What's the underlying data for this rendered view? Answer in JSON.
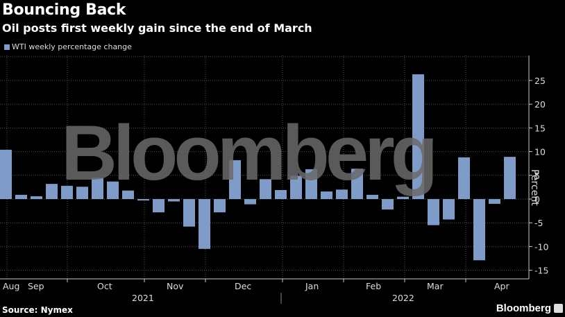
{
  "header": {
    "title": "Bouncing Back",
    "subtitle": "Oil posts first weekly gain since the end of March"
  },
  "legend": {
    "label": "WTI weekly percentage change",
    "color": "#7f9cc8"
  },
  "footer": {
    "source": "Source: Nymex",
    "brand": "Bloomberg"
  },
  "watermark": "Bloomberg",
  "colors": {
    "bar": "#7f9cc8",
    "background": "#000000",
    "grid": "#555555",
    "axis": "#cccccc"
  },
  "chart_data": {
    "type": "bar",
    "title": "Bouncing Back",
    "subtitle": "Oil posts first weekly gain since the end of March",
    "xlabel": "",
    "ylabel": "Percent",
    "ylim": [
      -17,
      30
    ],
    "yticks": [
      25,
      20,
      15,
      10,
      5,
      0,
      -5,
      -10,
      -15
    ],
    "xtick_labels": [
      "Aug",
      "Sep",
      "Oct",
      "Nov",
      "Dec",
      "Jan",
      "Feb",
      "Mar",
      "Apr"
    ],
    "year_labels": [
      "2021",
      "2022"
    ],
    "legend": [
      "WTI weekly percentage change"
    ],
    "grid": true,
    "series": [
      {
        "name": "WTI weekly percentage change",
        "values": [
          10.4,
          0.9,
          0.6,
          3.2,
          2.8,
          2.6,
          4.5,
          3.7,
          1.8,
          -0.3,
          -2.8,
          -0.5,
          -5.8,
          -10.5,
          -2.8,
          8.2,
          -1.1,
          4.2,
          1.9,
          4.9,
          6.3,
          1.6,
          2.0,
          6.4,
          0.9,
          -2.2,
          0.5,
          26.3,
          -5.5,
          -4.3,
          8.8,
          -12.9,
          -1.0,
          8.9
        ]
      }
    ]
  }
}
